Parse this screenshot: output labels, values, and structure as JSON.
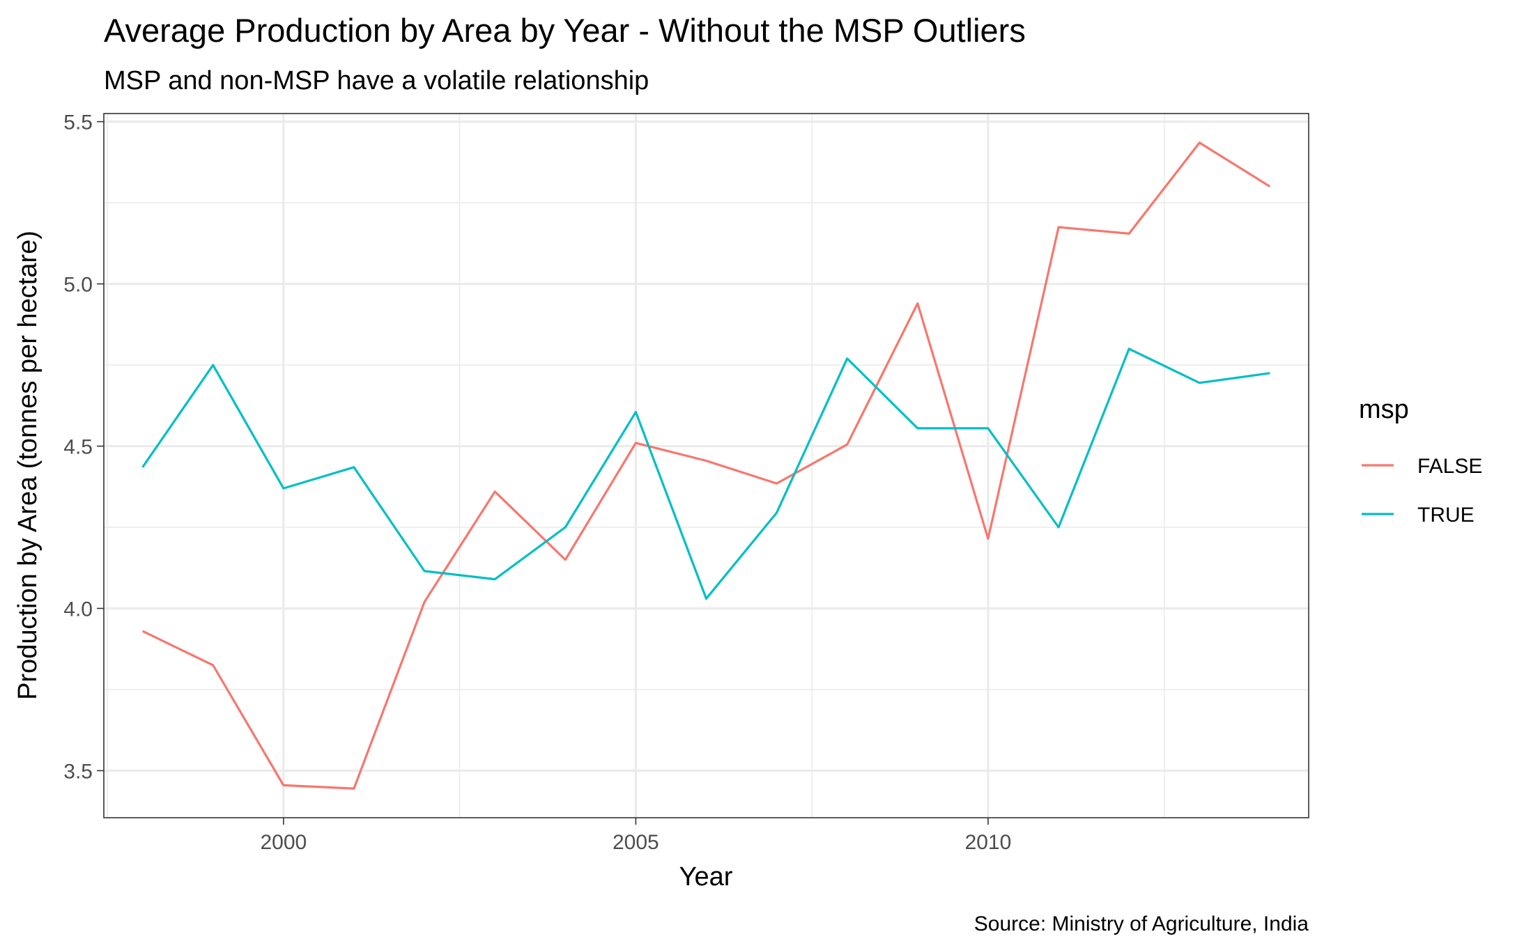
{
  "chart_data": {
    "type": "line",
    "title": "Average Production by Area by Year - Without the MSP Outliers",
    "subtitle": "MSP and non-MSP have a volatile relationship",
    "xlabel": "Year",
    "ylabel": "Production by Area (tonnes per hectare)",
    "caption": "Source: Ministry of Agriculture, India",
    "x": [
      1998,
      1999,
      2000,
      2001,
      2002,
      2003,
      2004,
      2005,
      2006,
      2007,
      2008,
      2009,
      2010,
      2011,
      2012,
      2013,
      2014
    ],
    "xlim": [
      1997.45,
      2014.55
    ],
    "ylim": [
      3.355,
      5.525
    ],
    "x_ticks": [
      2000,
      2005,
      2010
    ],
    "x_tick_labels": [
      "2000",
      "2005",
      "2010"
    ],
    "y_ticks": [
      3.5,
      4.0,
      4.5,
      5.0,
      5.5
    ],
    "y_tick_labels": [
      "3.5",
      "4.0",
      "4.5",
      "5.0",
      "5.5"
    ],
    "grid": true,
    "legend": {
      "title": "msp",
      "position": "right"
    },
    "series": [
      {
        "name": "FALSE",
        "color": "#F8766D",
        "values": [
          3.93,
          3.825,
          3.455,
          3.445,
          4.02,
          4.36,
          4.15,
          4.51,
          4.455,
          4.385,
          4.505,
          4.94,
          4.215,
          5.175,
          5.155,
          5.435,
          5.3
        ]
      },
      {
        "name": "TRUE",
        "color": "#00BFC4",
        "values": [
          4.435,
          4.75,
          4.37,
          4.435,
          4.115,
          4.09,
          4.25,
          4.605,
          4.03,
          4.295,
          4.77,
          4.555,
          4.555,
          4.25,
          4.8,
          4.695,
          4.725
        ]
      }
    ]
  }
}
